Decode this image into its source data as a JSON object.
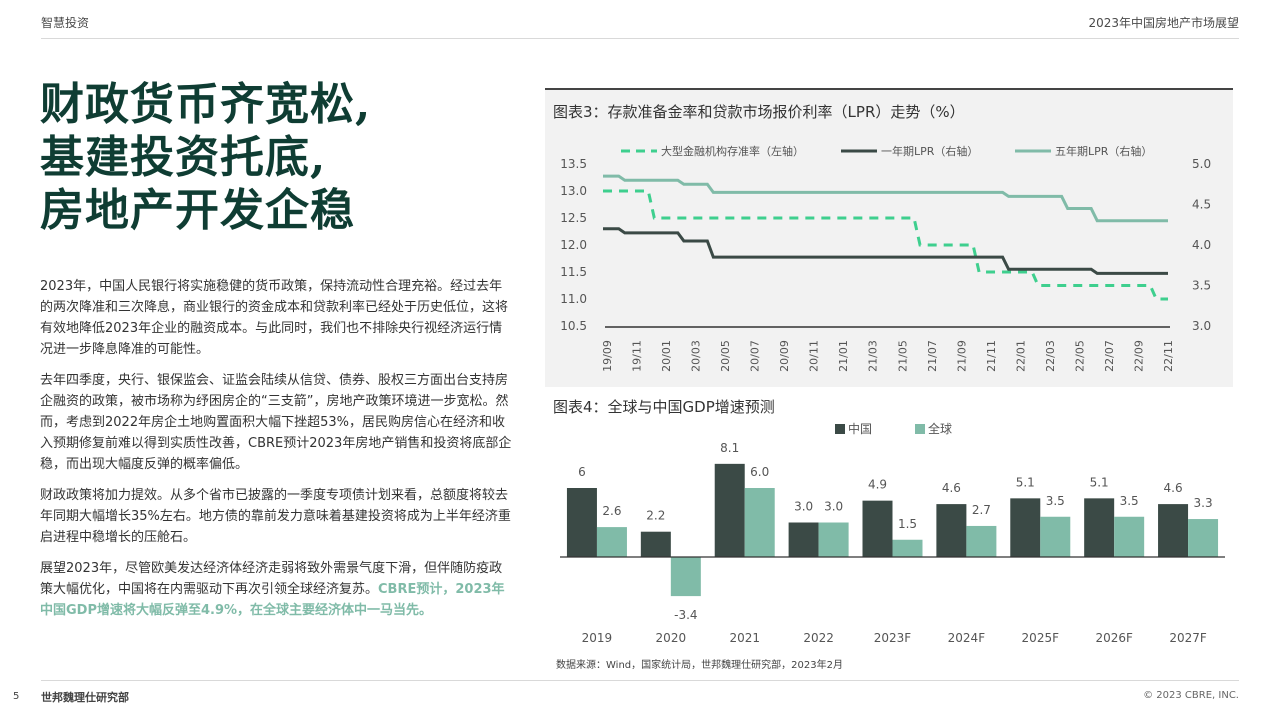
{
  "header": {
    "section": "智慧投资",
    "report": "2023年中国房地产市场展望"
  },
  "title_lines": [
    "财政货币齐宽松,",
    "基建投资托底,",
    "房地产开发企稳"
  ],
  "paragraphs": {
    "p1": "2023年，中国人民银行将实施稳健的货币政策，保持流动性合理充裕。经过去年的两次降准和三次降息，商业银行的资金成本和贷款利率已经处于历史低位，这将有效地降低2023年企业的融资成本。与此同时，我们也不排除央行视经济运行情况进一步降息降准的可能性。",
    "p2": "去年四季度，央行、银保监会、证监会陆续从信贷、债券、股权三方面出台支持房企融资的政策，被市场称为纾困房企的“三支箭”，房地产政策环境进一步宽松。然而，考虑到2022年房企土地购置面积大幅下挫超53%，居民购房信心在经济和收入预期修复前难以得到实质性改善，CBRE预计2023年房地产销售和投资将底部企稳，而出现大幅度反弹的概率偏低。",
    "p3": "财政政策将加力提效。从多个省市已披露的一季度专项债计划来看，总额度将较去年同期大幅增长35%左右。地方债的靠前发力意味着基建投资将成为上半年经济重启进程中稳增长的压舱石。",
    "p4_plain": "展望2023年，尽管欧美发达经济体经济走弱将致外需景气度下滑，但伴随防疫政策大幅优化，中国将在内需驱动下再次引领全球经济复苏。",
    "p4_highlight": "CBRE预计，2023年中国GDP增速将大幅反弹至4.9%，在全球主要经济体中一马当先。"
  },
  "chart_data": [
    {
      "type": "line",
      "title": "图表3：存款准备金率和贷款市场报价利率（LPR）走势（%）",
      "x": [
        "19/09",
        "19/11",
        "20/01",
        "20/03",
        "20/05",
        "20/07",
        "20/09",
        "20/11",
        "21/01",
        "21/03",
        "21/05",
        "21/07",
        "21/09",
        "21/11",
        "22/01",
        "22/03",
        "22/05",
        "22/07",
        "22/09",
        "22/11"
      ],
      "y_left": {
        "ticks": [
          "10.5",
          "11.0",
          "11.5",
          "12.0",
          "12.5",
          "13.0",
          "13.5"
        ],
        "range": [
          10.5,
          13.5
        ]
      },
      "y_right": {
        "ticks": [
          "3.0",
          "3.5",
          "4.0",
          "4.5",
          "5.0"
        ],
        "range": [
          3.0,
          5.0
        ]
      },
      "series": [
        {
          "name": "大型金融机构存准率（左轴）",
          "axis": "left",
          "color": "#3ecf8e",
          "dashed": true,
          "values": [
            13.0,
            13.0,
            12.5,
            12.5,
            12.5,
            12.5,
            12.5,
            12.5,
            12.5,
            12.5,
            12.5,
            12.0,
            12.0,
            11.5,
            11.5,
            11.25,
            11.25,
            11.25,
            11.25,
            11.0
          ]
        },
        {
          "name": "一年期LPR（右轴）",
          "axis": "right",
          "color": "#3b4a46",
          "dashed": false,
          "values": [
            4.2,
            4.15,
            4.15,
            4.05,
            3.85,
            3.85,
            3.85,
            3.85,
            3.85,
            3.85,
            3.85,
            3.85,
            3.85,
            3.85,
            3.7,
            3.7,
            3.7,
            3.65,
            3.65,
            3.65
          ]
        },
        {
          "name": "五年期LPR（右轴）",
          "axis": "right",
          "color": "#80bba8",
          "dashed": false,
          "values": [
            4.85,
            4.8,
            4.8,
            4.75,
            4.65,
            4.65,
            4.65,
            4.65,
            4.65,
            4.65,
            4.65,
            4.65,
            4.65,
            4.65,
            4.6,
            4.6,
            4.45,
            4.3,
            4.3,
            4.3
          ]
        }
      ]
    },
    {
      "type": "bar",
      "title": "图表4：全球与中国GDP增速预测",
      "categories": [
        "2019",
        "2020",
        "2021",
        "2022",
        "2023F",
        "2024F",
        "2025F",
        "2026F",
        "2027F"
      ],
      "series": [
        {
          "name": "中国",
          "color": "#3b4a46",
          "values": [
            6,
            2.2,
            8.1,
            3.0,
            4.9,
            4.6,
            5.1,
            5.1,
            4.6
          ],
          "labels": [
            "6",
            "2.2",
            "8.1",
            "3.0",
            "4.9",
            "4.6",
            "5.1",
            "5.1",
            "4.6"
          ]
        },
        {
          "name": "全球",
          "color": "#80bba8",
          "values": [
            2.6,
            -3.4,
            6.0,
            3.0,
            1.5,
            2.7,
            3.5,
            3.5,
            3.3
          ],
          "labels": [
            "2.6",
            "-3.4",
            "6.0",
            "3.0",
            "1.5",
            "2.7",
            "3.5",
            "3.5",
            "3.3"
          ]
        }
      ],
      "ylim": [
        -3.4,
        8.1
      ]
    }
  ],
  "source": "数据来源：Wind，国家统计局，世邦魏理仕研究部，2023年2月",
  "footer": {
    "page": "5",
    "org": "世邦魏理仕研究部",
    "copyright": "© 2023 CBRE, INC."
  }
}
